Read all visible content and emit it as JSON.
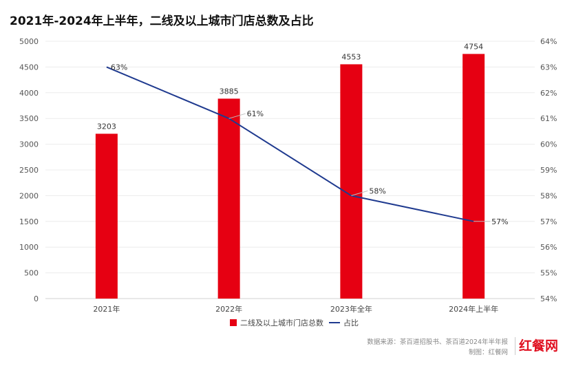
{
  "chart_data": {
    "type": "bar",
    "title": "2021年-2024年上半年，二线及以上城市门店总数及占比",
    "categories": [
      "2021年",
      "2022年",
      "2023年全年",
      "2024年上半年"
    ],
    "series": [
      {
        "name": "二线及以上城市门店总数",
        "type": "bar",
        "axis": "left",
        "color": "#e60012",
        "values": [
          3203,
          3885,
          4553,
          4754
        ]
      },
      {
        "name": "占比",
        "type": "line",
        "axis": "right",
        "color": "#1f3a8f",
        "values": [
          63,
          61,
          58,
          57
        ],
        "value_labels": [
          "63%",
          "61%",
          "58%",
          "57%"
        ]
      }
    ],
    "y_left": {
      "ylim": [
        0,
        5000
      ],
      "ticks": [
        "0",
        "500",
        "1000",
        "1500",
        "2000",
        "2500",
        "3000",
        "3500",
        "4000",
        "4500",
        "5000"
      ]
    },
    "y_right": {
      "ylim": [
        54,
        64
      ],
      "ticks": [
        "54%",
        "55%",
        "56%",
        "57%",
        "58%",
        "59%",
        "60%",
        "61%",
        "62%",
        "63%",
        "64%"
      ]
    },
    "grid": true,
    "legend_placement": "bottom-center"
  },
  "footer": {
    "source": "数据来源：茶百道招股书、茶百道2024年半年报",
    "credit": "制图：红餐网",
    "brand": "红餐网"
  }
}
